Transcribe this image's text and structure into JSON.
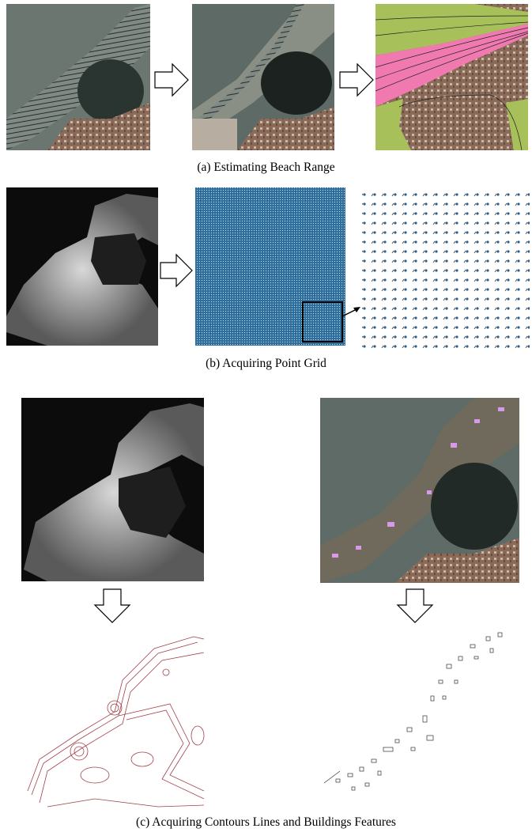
{
  "figure": {
    "captions": [
      "(a) Estimating Beach Range",
      "(b) Acquiring Point Grid",
      "(c) Acquiring Contours Lines and Buildings Features"
    ]
  }
}
